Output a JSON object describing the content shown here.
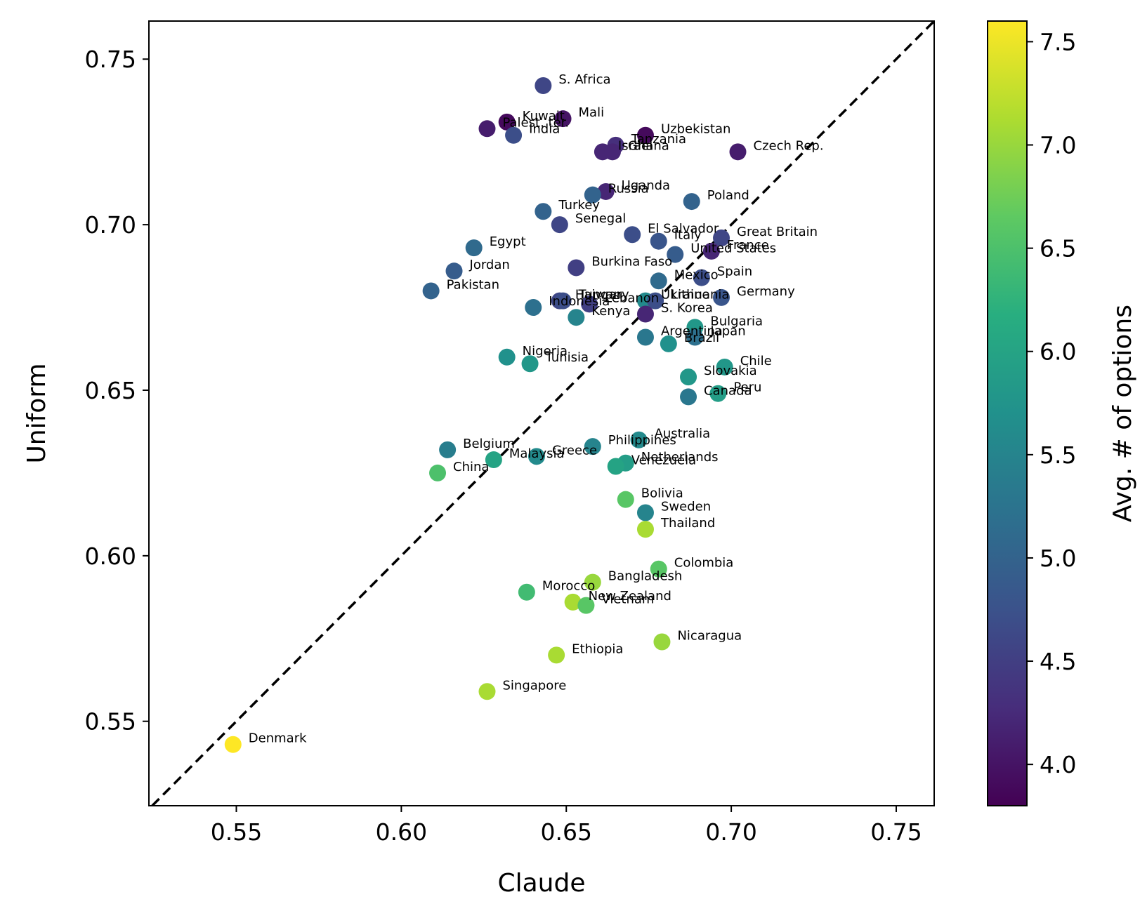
{
  "chart_data": {
    "type": "scatter",
    "title": "",
    "xlabel": "Claude",
    "ylabel": "Uniform",
    "xlim": [
      0.5235,
      0.7615
    ],
    "ylim": [
      0.5245,
      0.7615
    ],
    "xticks": [
      "0.55",
      "0.60",
      "0.65",
      "0.70",
      "0.75"
    ],
    "yticks": [
      "0.55",
      "0.60",
      "0.65",
      "0.70",
      "0.75"
    ],
    "reference_line": "y = x (dashed, black)",
    "colorbar": {
      "label": "Avg. # of options",
      "range": [
        3.8,
        7.6
      ],
      "colormap": "viridis",
      "ticks": [
        "4.0",
        "4.5",
        "5.0",
        "5.5",
        "6.0",
        "6.5",
        "7.0",
        "7.5"
      ]
    },
    "points": [
      {
        "label": "S. Africa",
        "x": 0.643,
        "y": 0.742,
        "c": 4.6
      },
      {
        "label": "Mali",
        "x": 0.649,
        "y": 0.732,
        "c": 4.0
      },
      {
        "label": "Kuwait",
        "x": 0.632,
        "y": 0.731,
        "c": 3.9
      },
      {
        "label": "Palest. ter.",
        "x": 0.626,
        "y": 0.729,
        "c": 4.1
      },
      {
        "label": "India",
        "x": 0.634,
        "y": 0.727,
        "c": 4.7
      },
      {
        "label": "Uzbekistan",
        "x": 0.674,
        "y": 0.727,
        "c": 3.9
      },
      {
        "label": "Tanzania",
        "x": 0.665,
        "y": 0.724,
        "c": 4.3
      },
      {
        "label": "Israel",
        "x": 0.661,
        "y": 0.722,
        "c": 4.2
      },
      {
        "label": "Ghana",
        "x": 0.664,
        "y": 0.722,
        "c": 4.2
      },
      {
        "label": "Czech Rep.",
        "x": 0.702,
        "y": 0.722,
        "c": 4.1
      },
      {
        "label": "Uganda",
        "x": 0.662,
        "y": 0.71,
        "c": 4.2
      },
      {
        "label": "Russia",
        "x": 0.658,
        "y": 0.709,
        "c": 5.0
      },
      {
        "label": "Poland",
        "x": 0.688,
        "y": 0.707,
        "c": 5.0
      },
      {
        "label": "Turkey",
        "x": 0.643,
        "y": 0.704,
        "c": 5.0
      },
      {
        "label": "Senegal",
        "x": 0.648,
        "y": 0.7,
        "c": 4.6
      },
      {
        "label": "El Salvador",
        "x": 0.67,
        "y": 0.697,
        "c": 4.7
      },
      {
        "label": "Great Britain",
        "x": 0.697,
        "y": 0.696,
        "c": 4.6
      },
      {
        "label": "Italy",
        "x": 0.678,
        "y": 0.695,
        "c": 4.8
      },
      {
        "label": "Egypt",
        "x": 0.622,
        "y": 0.693,
        "c": 5.1
      },
      {
        "label": "France",
        "x": 0.694,
        "y": 0.692,
        "c": 4.2
      },
      {
        "label": "United States",
        "x": 0.683,
        "y": 0.691,
        "c": 4.9
      },
      {
        "label": "Burkina Faso",
        "x": 0.653,
        "y": 0.687,
        "c": 4.5
      },
      {
        "label": "Jordan",
        "x": 0.616,
        "y": 0.686,
        "c": 4.9
      },
      {
        "label": "Spain",
        "x": 0.691,
        "y": 0.684,
        "c": 4.7
      },
      {
        "label": "Mexico",
        "x": 0.678,
        "y": 0.683,
        "c": 5.1
      },
      {
        "label": "Pakistan",
        "x": 0.609,
        "y": 0.68,
        "c": 5.0
      },
      {
        "label": "Germany",
        "x": 0.697,
        "y": 0.678,
        "c": 4.8
      },
      {
        "label": "Hungary",
        "x": 0.648,
        "y": 0.677,
        "c": 4.6
      },
      {
        "label": "Taiwan",
        "x": 0.649,
        "y": 0.677,
        "c": 4.7
      },
      {
        "label": "Ukraine",
        "x": 0.674,
        "y": 0.677,
        "c": 5.6
      },
      {
        "label": "Lithuania",
        "x": 0.677,
        "y": 0.677,
        "c": 4.7
      },
      {
        "label": "Lebanon",
        "x": 0.657,
        "y": 0.676,
        "c": 4.5
      },
      {
        "label": "Indonesia",
        "x": 0.64,
        "y": 0.675,
        "c": 5.2
      },
      {
        "label": "Kenya",
        "x": 0.653,
        "y": 0.672,
        "c": 5.5
      },
      {
        "label": "S. Korea",
        "x": 0.674,
        "y": 0.673,
        "c": 4.2
      },
      {
        "label": "Bulgaria",
        "x": 0.689,
        "y": 0.669,
        "c": 5.8
      },
      {
        "label": "Argentina",
        "x": 0.674,
        "y": 0.666,
        "c": 5.3
      },
      {
        "label": "Japan",
        "x": 0.689,
        "y": 0.666,
        "c": 5.2
      },
      {
        "label": "Brazil",
        "x": 0.681,
        "y": 0.664,
        "c": 5.7
      },
      {
        "label": "Nigeria",
        "x": 0.632,
        "y": 0.66,
        "c": 5.7
      },
      {
        "label": "Tunisia",
        "x": 0.639,
        "y": 0.658,
        "c": 5.8
      },
      {
        "label": "Chile",
        "x": 0.698,
        "y": 0.657,
        "c": 5.8
      },
      {
        "label": "Slovakia",
        "x": 0.687,
        "y": 0.654,
        "c": 5.8
      },
      {
        "label": "Peru",
        "x": 0.696,
        "y": 0.649,
        "c": 5.9
      },
      {
        "label": "Canada",
        "x": 0.687,
        "y": 0.648,
        "c": 5.3
      },
      {
        "label": "Australia",
        "x": 0.672,
        "y": 0.635,
        "c": 5.6
      },
      {
        "label": "Philippines",
        "x": 0.658,
        "y": 0.633,
        "c": 5.5
      },
      {
        "label": "Belgium",
        "x": 0.614,
        "y": 0.632,
        "c": 5.4
      },
      {
        "label": "Greece",
        "x": 0.641,
        "y": 0.63,
        "c": 5.6
      },
      {
        "label": "Malaysia",
        "x": 0.628,
        "y": 0.629,
        "c": 6.0
      },
      {
        "label": "Netherlands",
        "x": 0.668,
        "y": 0.628,
        "c": 5.9
      },
      {
        "label": "Venezuela",
        "x": 0.665,
        "y": 0.627,
        "c": 6.0
      },
      {
        "label": "China",
        "x": 0.611,
        "y": 0.625,
        "c": 6.5
      },
      {
        "label": "Bolivia",
        "x": 0.668,
        "y": 0.617,
        "c": 6.6
      },
      {
        "label": "Sweden",
        "x": 0.674,
        "y": 0.613,
        "c": 5.5
      },
      {
        "label": "Thailand",
        "x": 0.674,
        "y": 0.608,
        "c": 7.1
      },
      {
        "label": "Colombia",
        "x": 0.678,
        "y": 0.596,
        "c": 6.6
      },
      {
        "label": "Bangladesh",
        "x": 0.658,
        "y": 0.592,
        "c": 7.0
      },
      {
        "label": "Morocco",
        "x": 0.638,
        "y": 0.589,
        "c": 6.4
      },
      {
        "label": "New Zealand",
        "x": 0.652,
        "y": 0.586,
        "c": 7.1
      },
      {
        "label": "Vietnam",
        "x": 0.656,
        "y": 0.585,
        "c": 6.6
      },
      {
        "label": "Nicaragua",
        "x": 0.679,
        "y": 0.574,
        "c": 7.0
      },
      {
        "label": "Ethiopia",
        "x": 0.647,
        "y": 0.57,
        "c": 7.1
      },
      {
        "label": "Singapore",
        "x": 0.626,
        "y": 0.559,
        "c": 7.1
      },
      {
        "label": "Denmark",
        "x": 0.549,
        "y": 0.543,
        "c": 7.6
      }
    ]
  }
}
